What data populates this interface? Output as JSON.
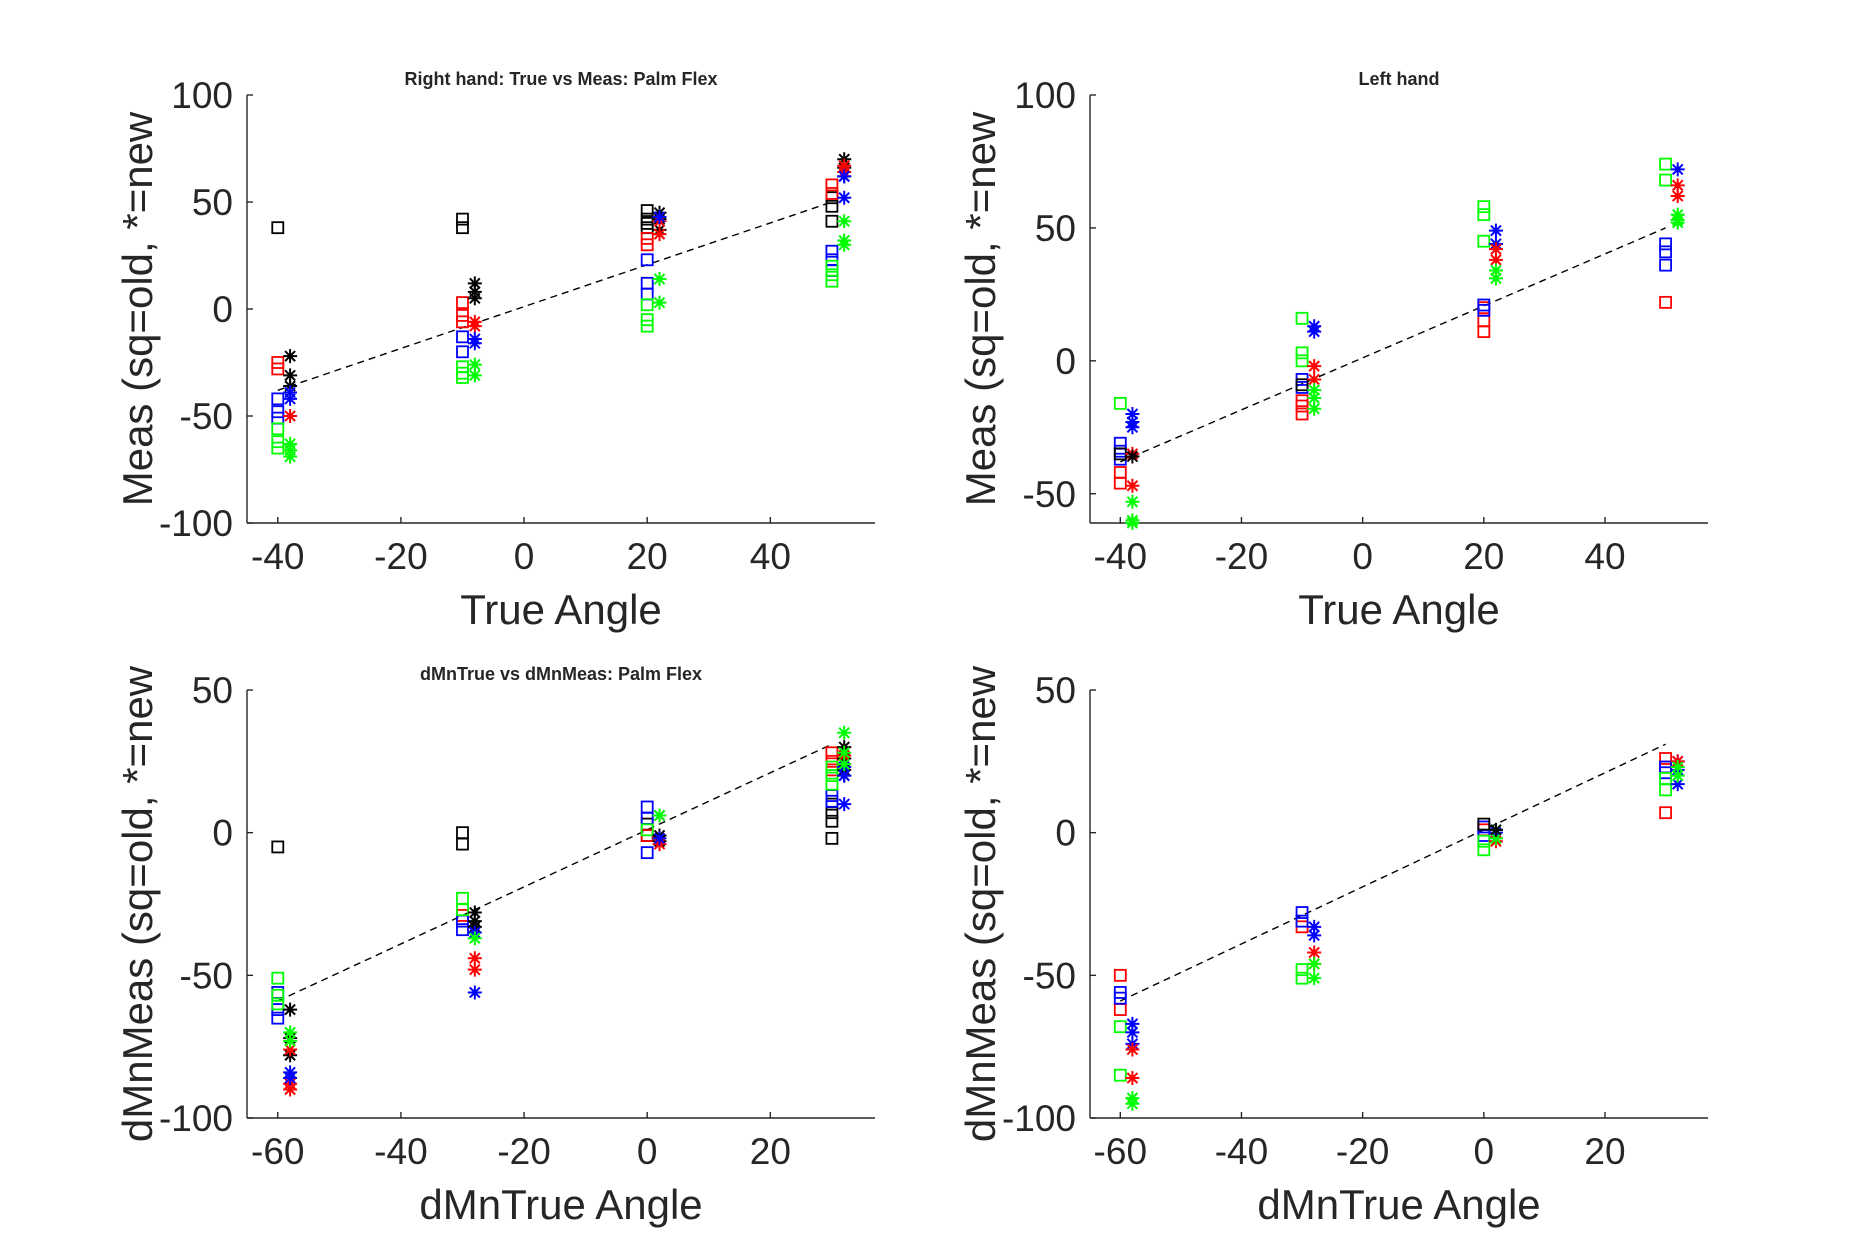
{
  "colors": {
    "red": "#ff0000",
    "blue": "#0000ff",
    "green": "#00ff00",
    "black": "#000000"
  },
  "legend_note": "sq=old, *=new",
  "chart_data": [
    {
      "type": "scatter",
      "title": "Right hand: True vs Meas: Palm Flex",
      "xlabel": "True Angle",
      "ylabel": "Meas (sq=old, *=new",
      "xlim": [
        -45,
        57
      ],
      "ylim": [
        -100,
        100
      ],
      "xticks": [
        -40,
        -20,
        0,
        20,
        40
      ],
      "yticks": [
        -100,
        -50,
        0,
        50,
        100
      ],
      "fit_line": {
        "x": [
          -40,
          50
        ],
        "y": [
          -38,
          50
        ]
      },
      "series": [
        {
          "marker": "square",
          "color": "black",
          "x": [
            -40,
            -10,
            -10,
            20,
            20,
            20,
            20,
            50,
            50,
            50
          ],
          "y": [
            38,
            42,
            38,
            46,
            42,
            40,
            38,
            52,
            48,
            41
          ]
        },
        {
          "marker": "square",
          "color": "red",
          "x": [
            -40,
            -40,
            -10,
            -10,
            -10,
            20,
            20,
            50,
            50
          ],
          "y": [
            -25,
            -28,
            3,
            -3,
            -6,
            33,
            30,
            58,
            54
          ]
        },
        {
          "marker": "square",
          "color": "blue",
          "x": [
            -40,
            -40,
            -40,
            -10,
            -10,
            20,
            20,
            20,
            50,
            50,
            50
          ],
          "y": [
            -42,
            -48,
            -51,
            -13,
            -20,
            23,
            12,
            7,
            27,
            23,
            18
          ]
        },
        {
          "marker": "square",
          "color": "green",
          "x": [
            -40,
            -40,
            -40,
            -10,
            -10,
            -10,
            20,
            20,
            20,
            50,
            50,
            50
          ],
          "y": [
            -56,
            -62,
            -65,
            -27,
            -30,
            -32,
            2,
            -5,
            -8,
            20,
            16,
            13
          ]
        },
        {
          "marker": "star",
          "color": "black",
          "x": [
            -38,
            -38,
            -38,
            -8,
            -8,
            -8,
            22,
            22,
            22,
            52,
            52,
            52
          ],
          "y": [
            -22,
            -31,
            -36,
            12,
            8,
            5,
            45,
            42,
            37,
            70,
            66,
            62
          ]
        },
        {
          "marker": "star",
          "color": "red",
          "x": [
            -38,
            -8,
            -8,
            22,
            22,
            52,
            52
          ],
          "y": [
            -50,
            -6,
            -8,
            41,
            35,
            67,
            64
          ]
        },
        {
          "marker": "star",
          "color": "blue",
          "x": [
            -38,
            -38,
            -8,
            -8,
            22,
            52,
            52
          ],
          "y": [
            -39,
            -42,
            -14,
            -16,
            43,
            62,
            52
          ]
        },
        {
          "marker": "star",
          "color": "green",
          "x": [
            -38,
            -38,
            -38,
            -8,
            -8,
            22,
            22,
            52,
            52,
            52
          ],
          "y": [
            -63,
            -66,
            -69,
            -26,
            -31,
            14,
            3,
            41,
            32,
            30
          ]
        }
      ]
    },
    {
      "type": "scatter",
      "title": "Left hand",
      "xlabel": "True Angle",
      "ylabel": "Meas (sq=old, *=new",
      "xlim": [
        -45,
        57
      ],
      "ylim": [
        -61,
        100
      ],
      "xticks": [
        -40,
        -20,
        0,
        20,
        40
      ],
      "yticks": [
        -50,
        0,
        50,
        100
      ],
      "fit_line": {
        "x": [
          -40,
          50
        ],
        "y": [
          -38,
          50
        ]
      },
      "series": [
        {
          "marker": "square",
          "color": "red",
          "x": [
            -40,
            -40,
            -10,
            -10,
            -10,
            20,
            20,
            20,
            50
          ],
          "y": [
            -42,
            -46,
            -15,
            -17,
            -20,
            15,
            11,
            20,
            22
          ]
        },
        {
          "marker": "square",
          "color": "blue",
          "x": [
            -40,
            -40,
            -40,
            -10,
            -10,
            20,
            20,
            50,
            50,
            50
          ],
          "y": [
            -31,
            -34,
            -37,
            -7,
            -10,
            21,
            19,
            44,
            41,
            36
          ]
        },
        {
          "marker": "square",
          "color": "green",
          "x": [
            -40,
            -10,
            -10,
            -10,
            20,
            20,
            20,
            50,
            50
          ],
          "y": [
            -16,
            16,
            3,
            0,
            58,
            55,
            45,
            74,
            68
          ]
        },
        {
          "marker": "square",
          "color": "black",
          "x": [
            -40,
            -10
          ],
          "y": [
            -35,
            -9
          ]
        },
        {
          "marker": "star",
          "color": "blue",
          "x": [
            -38,
            -38,
            -38,
            -8,
            -8,
            22,
            22,
            52
          ],
          "y": [
            -20,
            -23,
            -25,
            13,
            11,
            49,
            44,
            72
          ]
        },
        {
          "marker": "star",
          "color": "red",
          "x": [
            -38,
            -38,
            -8,
            -8,
            22,
            22,
            52,
            52
          ],
          "y": [
            -35,
            -47,
            -2,
            -7,
            42,
            38,
            66,
            62
          ]
        },
        {
          "marker": "star",
          "color": "green",
          "x": [
            -38,
            -38,
            -38,
            -8,
            -8,
            -8,
            22,
            22,
            52,
            52,
            52
          ],
          "y": [
            -53,
            -60,
            -61,
            -11,
            -14,
            -18,
            34,
            31,
            55,
            53,
            52
          ]
        },
        {
          "marker": "star",
          "color": "black",
          "x": [
            -38
          ],
          "y": [
            -36
          ]
        }
      ]
    },
    {
      "type": "scatter",
      "title": "dMnTrue vs dMnMeas: Palm Flex",
      "xlabel": "dMnTrue Angle",
      "ylabel": "dMnMeas (sq=old, *=new",
      "xlim": [
        -65,
        37
      ],
      "ylim": [
        -100,
        50
      ],
      "xticks": [
        -60,
        -40,
        -20,
        0,
        20
      ],
      "yticks": [
        -100,
        -50,
        0,
        50
      ],
      "fit_line": {
        "x": [
          -60,
          30
        ],
        "y": [
          -59,
          31
        ]
      },
      "series": [
        {
          "marker": "square",
          "color": "black",
          "x": [
            -60,
            -30,
            -30,
            0,
            0,
            30,
            30,
            30,
            30
          ],
          "y": [
            -5,
            0,
            -4,
            3,
            -1,
            10,
            7,
            4,
            -2
          ]
        },
        {
          "marker": "square",
          "color": "red",
          "x": [
            -30,
            0,
            30,
            30,
            30
          ],
          "y": [
            -29,
            -1,
            28,
            25,
            22
          ]
        },
        {
          "marker": "square",
          "color": "blue",
          "x": [
            -60,
            -60,
            -60,
            -30,
            -30,
            0,
            0,
            0,
            30,
            30
          ],
          "y": [
            -56,
            -62,
            -65,
            -31,
            -34,
            9,
            5,
            -7,
            13,
            11
          ]
        },
        {
          "marker": "square",
          "color": "green",
          "x": [
            -60,
            -60,
            -60,
            -30,
            -30,
            0,
            30,
            30,
            30
          ],
          "y": [
            -51,
            -57,
            -60,
            -23,
            -27,
            1,
            23,
            20,
            17
          ]
        },
        {
          "marker": "star",
          "color": "black",
          "x": [
            -58,
            -58,
            -58,
            -28,
            -28,
            -28,
            2,
            2,
            2,
            32,
            32,
            32,
            32
          ],
          "y": [
            -62,
            -72,
            -78,
            -28,
            -31,
            -33,
            6,
            -1,
            -3,
            30,
            26,
            22,
            20
          ]
        },
        {
          "marker": "star",
          "color": "red",
          "x": [
            -58,
            -58,
            -58,
            -28,
            -28,
            2,
            32,
            32
          ],
          "y": [
            -76,
            -88,
            -90,
            -44,
            -48,
            -4,
            27,
            24
          ]
        },
        {
          "marker": "star",
          "color": "blue",
          "x": [
            -58,
            -58,
            -28,
            -28,
            2,
            32,
            32,
            32
          ],
          "y": [
            -84,
            -86,
            -35,
            -56,
            -2,
            23,
            20,
            10
          ]
        },
        {
          "marker": "star",
          "color": "green",
          "x": [
            -58,
            -58,
            -28,
            2,
            32,
            32,
            32
          ],
          "y": [
            -70,
            -73,
            -37,
            6,
            35,
            28,
            24
          ]
        }
      ]
    },
    {
      "type": "scatter",
      "title": "",
      "xlabel": "dMnTrue Angle",
      "ylabel": "dMnMeas (sq=old, *=new",
      "xlim": [
        -65,
        37
      ],
      "ylim": [
        -100,
        50
      ],
      "xticks": [
        -60,
        -40,
        -20,
        0,
        20
      ],
      "yticks": [
        -100,
        -50,
        0,
        50
      ],
      "fit_line": {
        "x": [
          -60,
          30
        ],
        "y": [
          -59,
          31
        ]
      },
      "series": [
        {
          "marker": "square",
          "color": "red",
          "x": [
            -60,
            -60,
            -30,
            0,
            30,
            30,
            30
          ],
          "y": [
            -50,
            -62,
            -33,
            1,
            26,
            23,
            7
          ]
        },
        {
          "marker": "square",
          "color": "blue",
          "x": [
            -60,
            -60,
            -30,
            -30,
            0,
            0,
            30,
            30
          ],
          "y": [
            -56,
            -58,
            -28,
            -31,
            2,
            -1,
            21,
            23
          ]
        },
        {
          "marker": "square",
          "color": "green",
          "x": [
            -60,
            -60,
            -30,
            -30,
            0,
            0,
            30,
            30
          ],
          "y": [
            -68,
            -85,
            -48,
            -51,
            -3,
            -6,
            19,
            15
          ]
        },
        {
          "marker": "square",
          "color": "black",
          "x": [
            0
          ],
          "y": [
            3
          ]
        },
        {
          "marker": "star",
          "color": "blue",
          "x": [
            -58,
            -58,
            -58,
            -28,
            -28,
            2,
            32,
            32,
            32
          ],
          "y": [
            -67,
            -70,
            -74,
            -33,
            -36,
            0,
            25,
            22,
            17
          ]
        },
        {
          "marker": "star",
          "color": "red",
          "x": [
            -58,
            -58,
            -28,
            -28,
            2,
            32
          ],
          "y": [
            -76,
            -86,
            -42,
            -46,
            -3,
            25
          ]
        },
        {
          "marker": "star",
          "color": "green",
          "x": [
            -58,
            -58,
            -28,
            -28,
            2,
            2,
            32,
            32
          ],
          "y": [
            -93,
            -95,
            -46,
            -51,
            1,
            -2,
            23,
            20
          ]
        },
        {
          "marker": "star",
          "color": "black",
          "x": [
            2
          ],
          "y": [
            1
          ]
        }
      ]
    }
  ]
}
